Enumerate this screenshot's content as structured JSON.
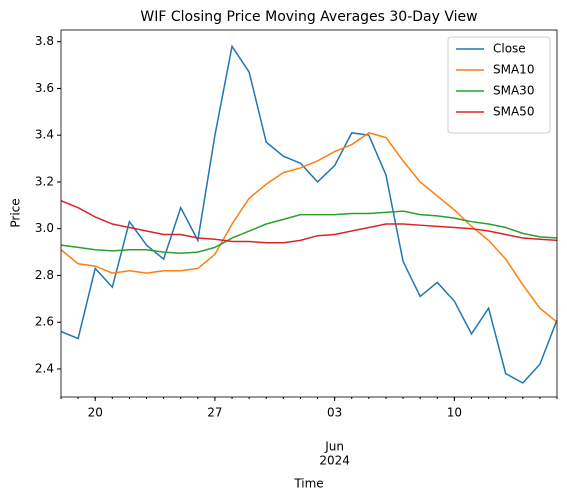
{
  "chart_data": {
    "type": "line",
    "title": "WIF Closing Price Moving Averages 30-Day View",
    "xlabel": "Time",
    "ylabel": "Price",
    "x": [
      "2024-05-18",
      "2024-05-19",
      "2024-05-20",
      "2024-05-21",
      "2024-05-22",
      "2024-05-23",
      "2024-05-24",
      "2024-05-25",
      "2024-05-26",
      "2024-05-27",
      "2024-05-28",
      "2024-05-29",
      "2024-05-30",
      "2024-05-31",
      "2024-06-01",
      "2024-06-02",
      "2024-06-03",
      "2024-06-04",
      "2024-06-05",
      "2024-06-06",
      "2024-06-07",
      "2024-06-08",
      "2024-06-09",
      "2024-06-10",
      "2024-06-11",
      "2024-06-12",
      "2024-06-13",
      "2024-06-14",
      "2024-06-15",
      "2024-06-16"
    ],
    "xlim": [
      "2024-05-18",
      "2024-06-16"
    ],
    "xticks": [
      {
        "value": "2024-05-20",
        "label": "20"
      },
      {
        "value": "2024-05-27",
        "label": "27"
      },
      {
        "value": "2024-06-03",
        "label": "03"
      },
      {
        "value": "2024-06-10",
        "label": "10"
      }
    ],
    "xtick_secondary": {
      "value": "2024-06-03",
      "label": [
        "Jun",
        "2024"
      ]
    },
    "ylim": [
      2.28,
      3.85
    ],
    "yticks": [
      2.4,
      2.6,
      2.8,
      {
        "value": 3,
        "label": "3.0"
      },
      3.2,
      3.4,
      3.6,
      3.8
    ],
    "legend": "upper right",
    "series": [
      {
        "name": "Close",
        "color": "#1f77b4",
        "values": [
          2.56,
          2.53,
          2.83,
          2.75,
          3.03,
          2.93,
          2.87,
          3.09,
          2.95,
          3.4,
          3.78,
          3.67,
          3.37,
          3.31,
          3.28,
          3.2,
          3.27,
          3.41,
          3.4,
          3.23,
          2.86,
          2.71,
          2.77,
          2.69,
          2.55,
          2.66,
          2.38,
          2.34,
          2.42,
          2.61
        ]
      },
      {
        "name": "SMA10",
        "color": "#ff7f0e",
        "values": [
          2.91,
          2.85,
          2.84,
          2.81,
          2.82,
          2.81,
          2.82,
          2.82,
          2.83,
          2.89,
          3.02,
          3.13,
          3.19,
          3.24,
          3.26,
          3.29,
          3.33,
          3.36,
          3.41,
          3.39,
          3.29,
          3.2,
          3.14,
          3.08,
          3.01,
          2.95,
          2.87,
          2.76,
          2.66,
          2.6
        ]
      },
      {
        "name": "SMA30",
        "color": "#2ca02c",
        "values": [
          2.93,
          2.92,
          2.91,
          2.905,
          2.91,
          2.91,
          2.9,
          2.895,
          2.9,
          2.92,
          2.96,
          2.99,
          3.02,
          3.04,
          3.06,
          3.06,
          3.06,
          3.065,
          3.065,
          3.07,
          3.075,
          3.06,
          3.055,
          3.045,
          3.03,
          3.02,
          3.005,
          2.98,
          2.965,
          2.96
        ]
      },
      {
        "name": "SMA50",
        "color": "#d62728",
        "values": [
          3.12,
          3.09,
          3.05,
          3.02,
          3.005,
          2.99,
          2.975,
          2.975,
          2.96,
          2.955,
          2.945,
          2.945,
          2.94,
          2.94,
          2.95,
          2.97,
          2.975,
          2.99,
          3.005,
          3.02,
          3.02,
          3.015,
          3.01,
          3.005,
          3.0,
          2.99,
          2.975,
          2.96,
          2.955,
          2.95
        ]
      }
    ]
  }
}
